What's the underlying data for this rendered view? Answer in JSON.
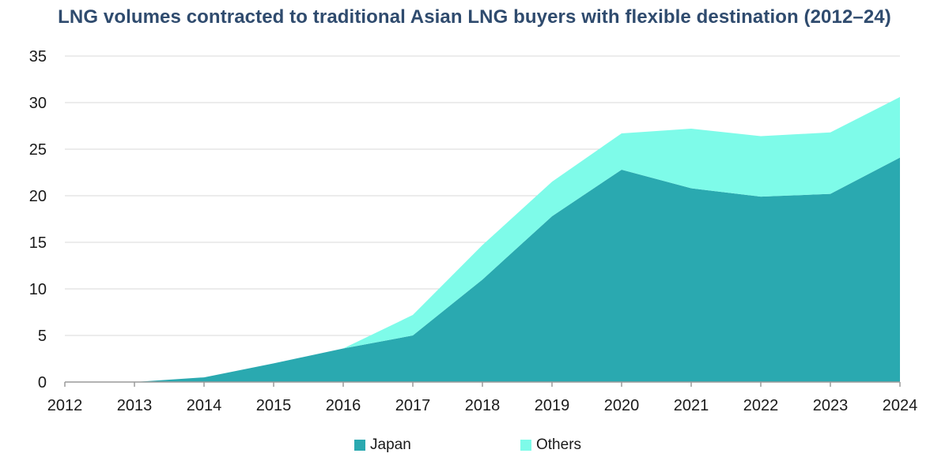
{
  "chart_data": {
    "type": "area",
    "stacked": true,
    "title": "LNG volumes contracted to traditional Asian LNG buyers with flexible destination (2012–24)",
    "x": [
      "2012",
      "2013",
      "2014",
      "2015",
      "2016",
      "2017",
      "2018",
      "2019",
      "2020",
      "2021",
      "2022",
      "2023",
      "2024"
    ],
    "series": [
      {
        "name": "Japan",
        "color": "#2aa9b0",
        "values": [
          0,
          0,
          0.5,
          2.0,
          3.6,
          5.0,
          11.0,
          17.8,
          22.8,
          20.8,
          19.9,
          20.2,
          24.1
        ]
      },
      {
        "name": "Others",
        "color": "#7efbe9",
        "values": [
          0,
          0,
          0,
          0,
          0,
          2.2,
          3.7,
          3.7,
          3.9,
          6.4,
          6.5,
          6.6,
          6.5
        ]
      }
    ],
    "ylim": [
      0,
      35
    ],
    "yticks": [
      "0",
      "5",
      "10",
      "15",
      "20",
      "25",
      "30",
      "35"
    ],
    "grid": true,
    "legend_position": "bottom"
  }
}
